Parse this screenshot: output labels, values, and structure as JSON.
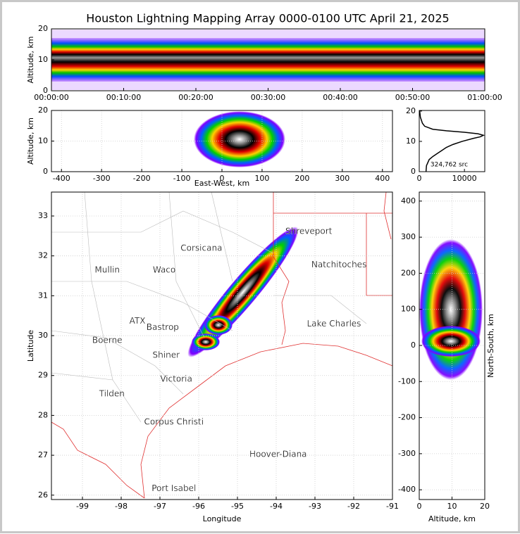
{
  "chart_data": [
    {
      "type": "density",
      "title": "Houston Lightning Mapping Array 0000-0100 UTC April 21, 2025",
      "y_label": "Altitude, km",
      "xlim": [
        0,
        60
      ],
      "xticks": [
        {
          "value": 0,
          "label": "00:00:00"
        },
        {
          "value": 10,
          "label": "00:10:00"
        },
        {
          "value": 20,
          "label": "00:20:00"
        },
        {
          "value": 30,
          "label": "00:30:00"
        },
        {
          "value": 40,
          "label": "00:40:00"
        },
        {
          "value": 50,
          "label": "00:50:00"
        },
        {
          "value": 60,
          "label": "01:00:00"
        }
      ],
      "ylim": [
        0,
        20
      ],
      "yticks": [
        0,
        10,
        20
      ],
      "grid": false
    },
    {
      "type": "density",
      "x_label": "East-West, km",
      "y_label": "Altitude, km",
      "xlim": [
        -425,
        425
      ],
      "xticks": [
        -400,
        -300,
        -200,
        -100,
        0,
        100,
        200,
        300,
        400
      ],
      "ylim": [
        0,
        20
      ],
      "yticks": [
        0,
        10,
        20
      ],
      "grid": true
    },
    {
      "type": "line",
      "annotation": "324,762 src",
      "color": "#000000",
      "xlim": [
        0,
        14500
      ],
      "xticks": [
        0,
        10000
      ],
      "ylim": [
        0,
        20.2
      ],
      "yticks": [
        0,
        10,
        20
      ],
      "altitudes": [
        0,
        2,
        4,
        5,
        6,
        7,
        8,
        9,
        10,
        11,
        11.5,
        12,
        12.5,
        13,
        13.5,
        14,
        15,
        16,
        18,
        20
      ],
      "values": [
        1500,
        1600,
        2200,
        3000,
        4000,
        5000,
        6000,
        7500,
        9500,
        12000,
        13500,
        14200,
        13000,
        10000,
        6000,
        3000,
        1200,
        700,
        250,
        100
      ],
      "grid": false
    },
    {
      "type": "map",
      "x_label": "Longitude",
      "y_label": "Latitude",
      "xlim": [
        -99.8,
        -91
      ],
      "xticks": [
        -99,
        -98,
        -97,
        -96,
        -95,
        -94,
        -93,
        -92,
        -91
      ],
      "ylim": [
        25.89,
        33.6
      ],
      "yticks": [
        26,
        27,
        28,
        29,
        30,
        31,
        32,
        33
      ],
      "grid": true,
      "cities": [
        {
          "name": "Shreveport",
          "lon": -93.16,
          "lat": 32.61,
          "color": "#000000"
        },
        {
          "name": "Corsicana",
          "lon": -95.93,
          "lat": 32.19,
          "color": "#000000"
        },
        {
          "name": "Mullin",
          "lon": -98.36,
          "lat": 31.64,
          "color": "#f08040"
        },
        {
          "name": "Waco",
          "lon": -96.89,
          "lat": 31.64,
          "color": "#000000"
        },
        {
          "name": "Natchitoches",
          "lon": -92.38,
          "lat": 31.77,
          "color": "#000000"
        },
        {
          "name": "ATX",
          "lon": -97.58,
          "lat": 30.36,
          "color": "#f08040"
        },
        {
          "name": "Bastrop",
          "lon": -96.93,
          "lat": 30.2,
          "color": "#000000"
        },
        {
          "name": "Lake Charles",
          "lon": -92.51,
          "lat": 30.29,
          "color": "#000000"
        },
        {
          "name": "Boerne",
          "lon": -98.36,
          "lat": 29.88,
          "color": "#000000"
        },
        {
          "name": "Shiner",
          "lon": -96.84,
          "lat": 29.51,
          "color": "#000000"
        },
        {
          "name": "Victoria",
          "lon": -96.58,
          "lat": 28.91,
          "color": "#000000"
        },
        {
          "name": "Tilden",
          "lon": -98.24,
          "lat": 28.54,
          "color": "#000000"
        },
        {
          "name": "Corpus Christi",
          "lon": -96.64,
          "lat": 27.83,
          "color": "#000000"
        },
        {
          "name": "Hoover-Diana",
          "lon": -93.95,
          "lat": 27.02,
          "color": "#0000ff"
        },
        {
          "name": "Port Isabel",
          "lon": -96.64,
          "lat": 26.16,
          "color": "#000000"
        }
      ]
    },
    {
      "type": "density",
      "x_label": "Altitude, km",
      "y_label": "North-South, km",
      "xlim": [
        0,
        20
      ],
      "xticks": [
        0,
        10,
        20
      ],
      "ylim": [
        -427,
        425
      ],
      "yticks": [
        -400,
        -300,
        -200,
        -100,
        0,
        100,
        200,
        300,
        400
      ],
      "grid": true
    }
  ]
}
